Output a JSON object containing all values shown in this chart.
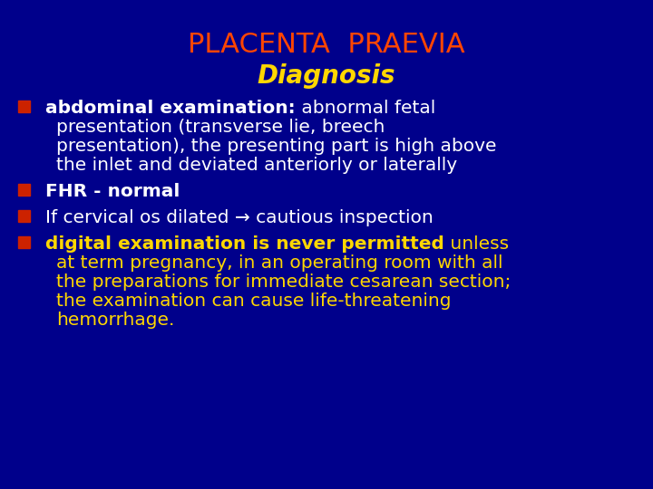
{
  "title": "PLACENTA  PRAEVIA",
  "subtitle": "Diagnosis",
  "title_color": "#FF4500",
  "subtitle_color": "#FFD700",
  "background_color": "#00008B",
  "bullet_color": "#CC2200",
  "white": "#FFFFFF",
  "yellow": "#FFD700",
  "title_fontsize": 22,
  "subtitle_fontsize": 20,
  "body_fontsize": 14.5,
  "figsize": [
    7.2,
    5.4
  ],
  "dpi": 100,
  "bullet_lines": [
    {
      "parts": [
        {
          "text": "abdominal examination:",
          "bold": true,
          "color": "#FFFFFF"
        },
        {
          "text": " abnormal fetal",
          "bold": false,
          "color": "#FFFFFF"
        }
      ],
      "continuation_lines": [
        "presentation (transverse lie, breech",
        "presentation), the presenting part is high above",
        "the inlet and deviated anteriorly or laterally"
      ],
      "cont_color": "#FFFFFF",
      "has_bullet": true
    },
    {
      "parts": [
        {
          "text": "FHR - normal",
          "bold": true,
          "color": "#FFFFFF"
        }
      ],
      "continuation_lines": [],
      "cont_color": "#FFFFFF",
      "has_bullet": true
    },
    {
      "parts": [
        {
          "text": "If cervical os dilated → cautious inspection",
          "bold": false,
          "color": "#FFFFFF"
        }
      ],
      "continuation_lines": [],
      "cont_color": "#FFFFFF",
      "has_bullet": true
    },
    {
      "parts": [
        {
          "text": "digital examination is never permitted",
          "bold": true,
          "color": "#FFD700"
        },
        {
          "text": " unless",
          "bold": false,
          "color": "#FFD700"
        }
      ],
      "continuation_lines": [
        "at term pregnancy, in an operating room with all",
        "the preparations for immediate cesarean section;",
        "the examination can cause life-threatening",
        "hemorrhage."
      ],
      "cont_color": "#FFD700",
      "has_bullet": true
    }
  ]
}
